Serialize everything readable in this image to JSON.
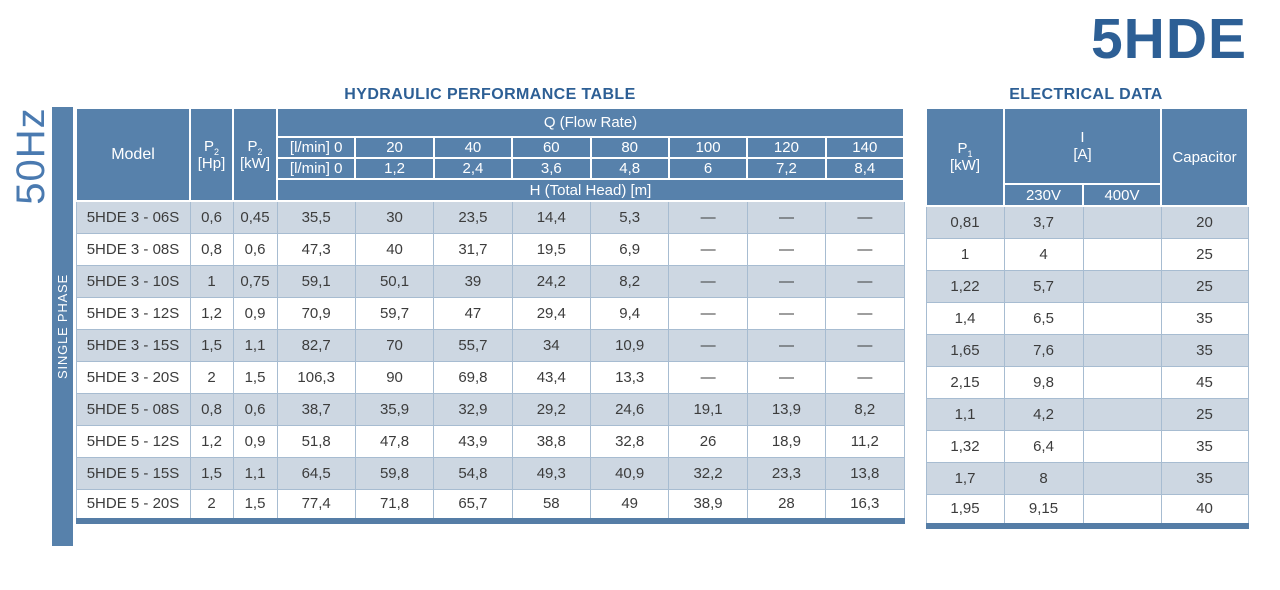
{
  "page": {
    "frequency": "50Hz",
    "product_title": "5HDE",
    "phase_label": "SINGLE PHASE"
  },
  "colors": {
    "header_blue": "#5781ab",
    "row_alt": "#cdd7e2",
    "title_blue": "#2d5f95",
    "freq_blue": "#4a7ab0",
    "border_blue": "#a7bcd1",
    "bottom_border": "#557da6"
  },
  "hydraulic": {
    "title": "HYDRAULIC PERFORMANCE TABLE",
    "header": {
      "model": "Model",
      "p2_base": "P",
      "p2_sub": "2",
      "p2_unit_hp": "[Hp]",
      "p2_unit_kw": "[kW]",
      "q_group": "Q (Flow Rate)",
      "flow_lmin": [
        "[l/min] 0",
        "20",
        "40",
        "60",
        "80",
        "100",
        "120",
        "140"
      ],
      "flow_m3h": [
        "[l/min] 0",
        "1,2",
        "2,4",
        "3,6",
        "4,8",
        "6",
        "7,2",
        "8,4"
      ],
      "head_group": "H (Total Head) [m]"
    },
    "rows": [
      {
        "model": "5HDE 3 - 06S",
        "p2_hp": "0,6",
        "p2_kw": "0,45",
        "values": [
          "35,5",
          "30",
          "23,5",
          "14,4",
          "5,3",
          "—",
          "—",
          "—"
        ]
      },
      {
        "model": "5HDE 3 - 08S",
        "p2_hp": "0,8",
        "p2_kw": "0,6",
        "values": [
          "47,3",
          "40",
          "31,7",
          "19,5",
          "6,9",
          "—",
          "—",
          "—"
        ]
      },
      {
        "model": "5HDE 3 - 10S",
        "p2_hp": "1",
        "p2_kw": "0,75",
        "values": [
          "59,1",
          "50,1",
          "39",
          "24,2",
          "8,2",
          "—",
          "—",
          "—"
        ]
      },
      {
        "model": "5HDE 3 - 12S",
        "p2_hp": "1,2",
        "p2_kw": "0,9",
        "values": [
          "70,9",
          "59,7",
          "47",
          "29,4",
          "9,4",
          "—",
          "—",
          "—"
        ]
      },
      {
        "model": "5HDE 3 - 15S",
        "p2_hp": "1,5",
        "p2_kw": "1,1",
        "values": [
          "82,7",
          "70",
          "55,7",
          "34",
          "10,9",
          "—",
          "—",
          "—"
        ]
      },
      {
        "model": "5HDE 3 - 20S",
        "p2_hp": "2",
        "p2_kw": "1,5",
        "values": [
          "106,3",
          "90",
          "69,8",
          "43,4",
          "13,3",
          "—",
          "—",
          "—"
        ]
      },
      {
        "model": "5HDE 5 - 08S",
        "p2_hp": "0,8",
        "p2_kw": "0,6",
        "values": [
          "38,7",
          "35,9",
          "32,9",
          "29,2",
          "24,6",
          "19,1",
          "13,9",
          "8,2"
        ]
      },
      {
        "model": "5HDE 5 - 12S",
        "p2_hp": "1,2",
        "p2_kw": "0,9",
        "values": [
          "51,8",
          "47,8",
          "43,9",
          "38,8",
          "32,8",
          "26",
          "18,9",
          "11,2"
        ]
      },
      {
        "model": "5HDE 5 - 15S",
        "p2_hp": "1,5",
        "p2_kw": "1,1",
        "values": [
          "64,5",
          "59,8",
          "54,8",
          "49,3",
          "40,9",
          "32,2",
          "23,3",
          "13,8"
        ]
      },
      {
        "model": "5HDE 5 - 20S",
        "p2_hp": "2",
        "p2_kw": "1,5",
        "values": [
          "77,4",
          "71,8",
          "65,7",
          "58",
          "49",
          "38,9",
          "28",
          "16,3"
        ]
      }
    ]
  },
  "electrical": {
    "title": "ELECTRICAL DATA",
    "header": {
      "p1_base": "P",
      "p1_sub": "1",
      "p1_unit": "[kW]",
      "i_base": "I",
      "i_unit": "[A]",
      "v230": "230V",
      "v400": "400V",
      "capacitor": "Capacitor"
    },
    "rows": [
      {
        "p1": "0,81",
        "i_230v": "3,7",
        "i_400v": "",
        "capacitor": "20"
      },
      {
        "p1": "1",
        "i_230v": "4",
        "i_400v": "",
        "capacitor": "25"
      },
      {
        "p1": "1,22",
        "i_230v": "5,7",
        "i_400v": "",
        "capacitor": "25"
      },
      {
        "p1": "1,4",
        "i_230v": "6,5",
        "i_400v": "",
        "capacitor": "35"
      },
      {
        "p1": "1,65",
        "i_230v": "7,6",
        "i_400v": "",
        "capacitor": "35"
      },
      {
        "p1": "2,15",
        "i_230v": "9,8",
        "i_400v": "",
        "capacitor": "45"
      },
      {
        "p1": "1,1",
        "i_230v": "4,2",
        "i_400v": "",
        "capacitor": "25"
      },
      {
        "p1": "1,32",
        "i_230v": "6,4",
        "i_400v": "",
        "capacitor": "35"
      },
      {
        "p1": "1,7",
        "i_230v": "8",
        "i_400v": "",
        "capacitor": "35"
      },
      {
        "p1": "1,95",
        "i_230v": "9,15",
        "i_400v": "",
        "capacitor": "40"
      }
    ]
  }
}
